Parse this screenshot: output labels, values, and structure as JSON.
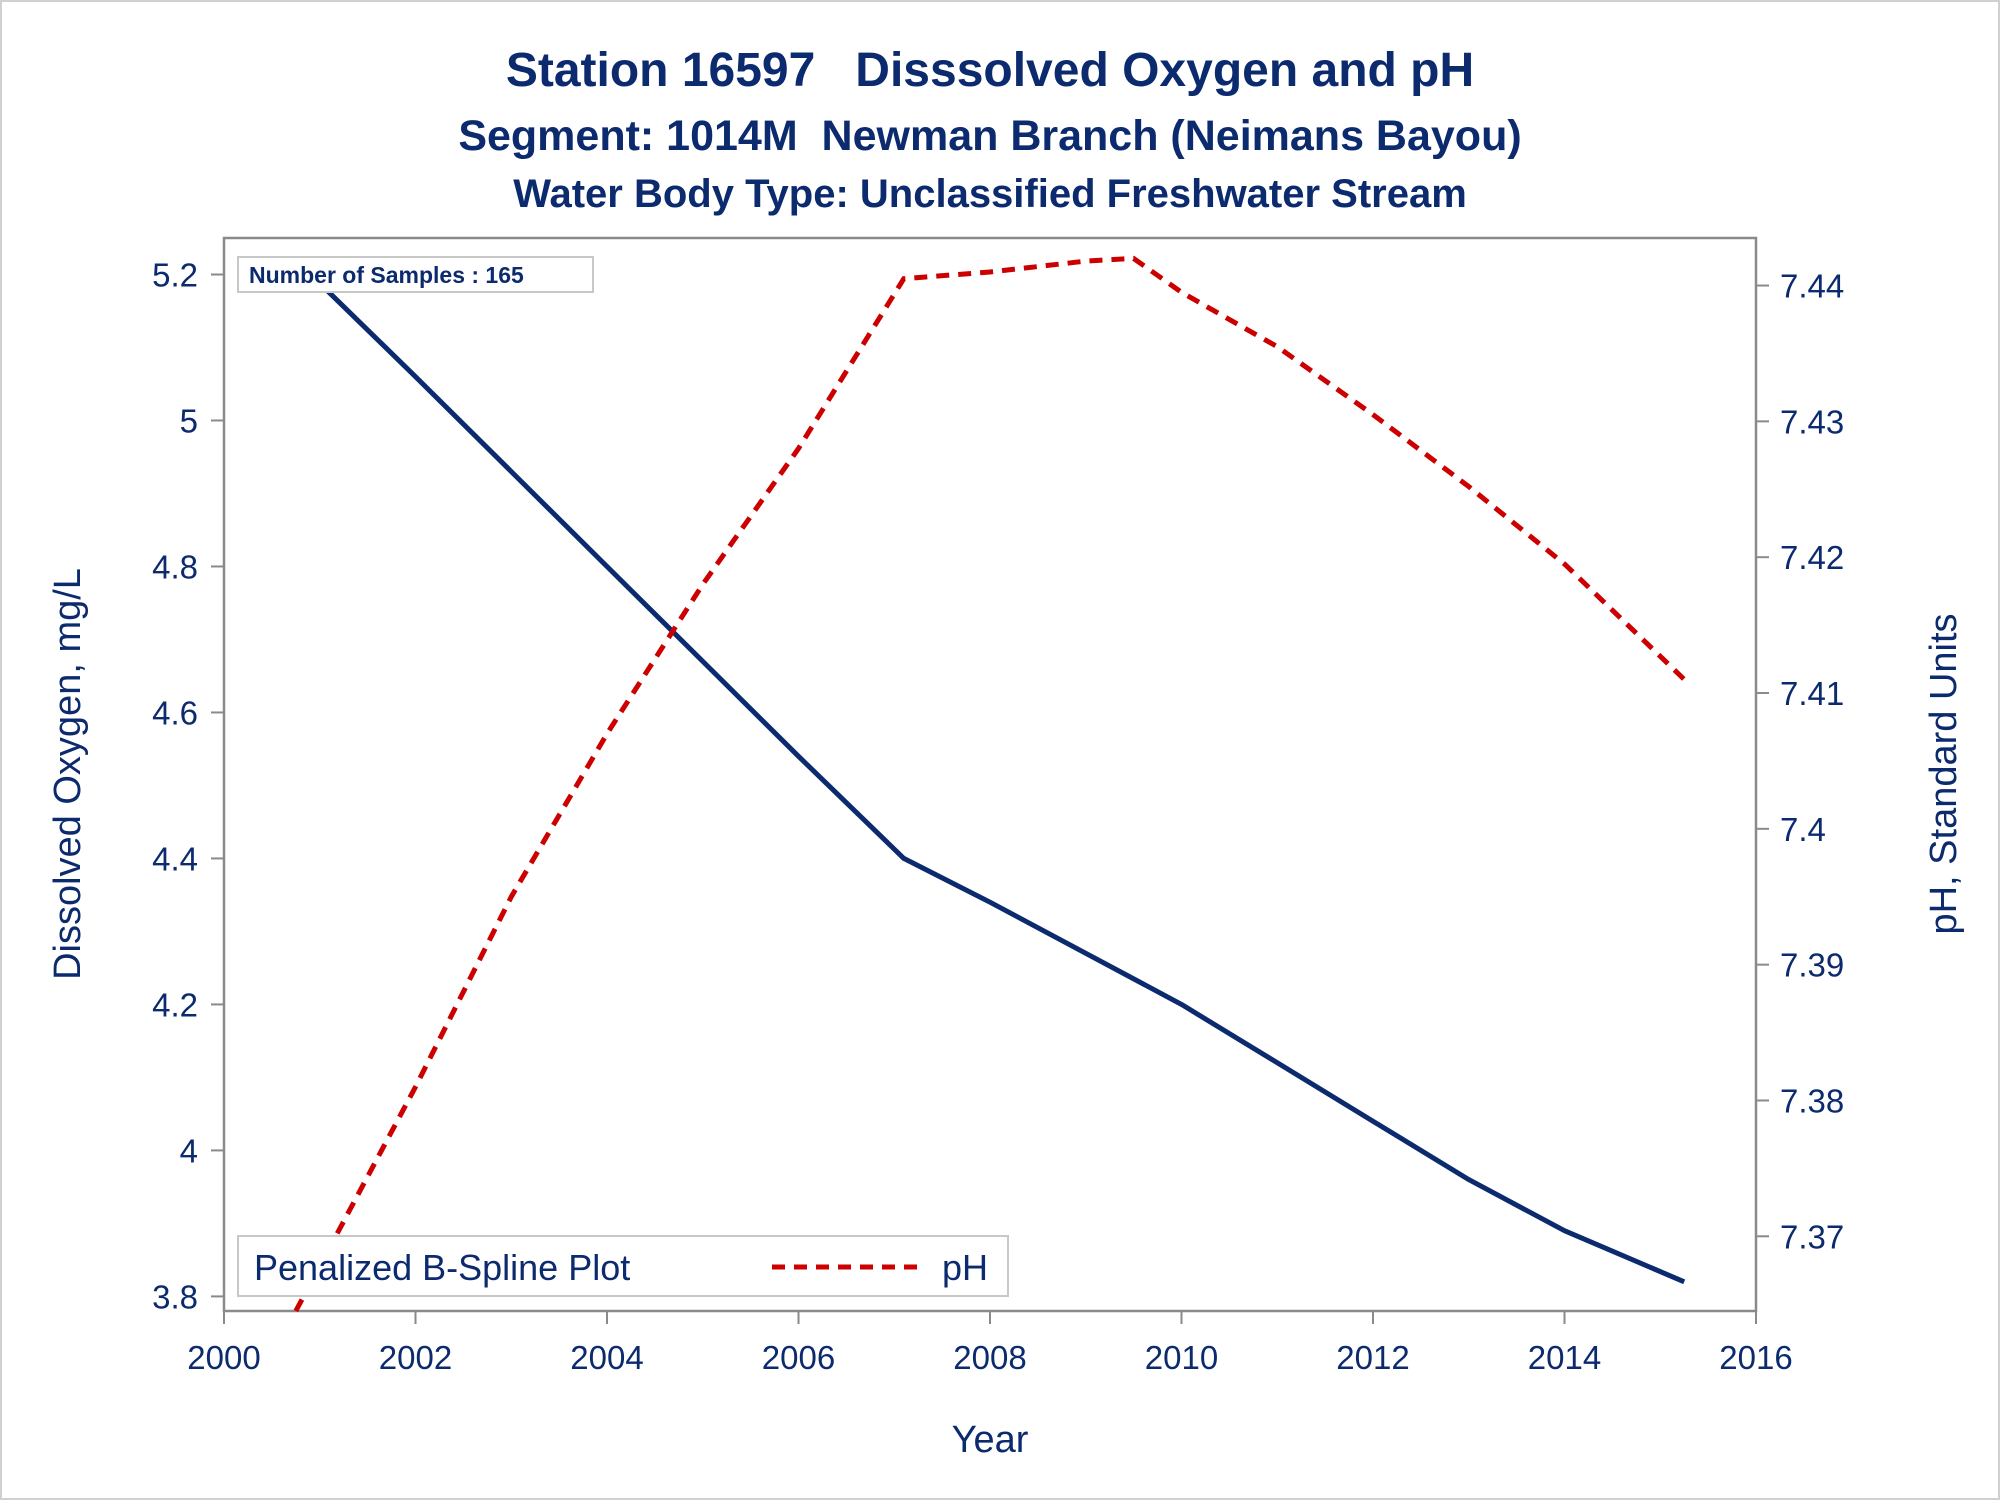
{
  "chart_data": {
    "type": "line",
    "title": "Station 16597   Disssolved Oxygen and pH",
    "subtitle": "Segment: 1014M  Newman Branch (Neimans Bayou)",
    "subtitle2": "Water Body Type: Unclassified Freshwater Stream",
    "xlabel": "Year",
    "ylabel": "Dissolved Oxygen, mg/L",
    "y2label": "pH, Standard Units",
    "xlim": [
      2000,
      2016
    ],
    "ylim": [
      3.78,
      5.25
    ],
    "y2lim": [
      7.3645,
      7.4435
    ],
    "xticks": [
      "2000",
      "2002",
      "2004",
      "2006",
      "2008",
      "2010",
      "2012",
      "2014",
      "2016"
    ],
    "yticks": [
      "3.8",
      "4",
      "4.2",
      "4.4",
      "4.6",
      "4.8",
      "5",
      "5.2"
    ],
    "y2ticks": [
      "7.37",
      "7.38",
      "7.39",
      "7.4",
      "7.41",
      "7.42",
      "7.43",
      "7.44"
    ],
    "annotation": "Number of Samples : 165",
    "legend": {
      "title": "Penalized B-Spline Plot",
      "position": "bottom-left",
      "entries": [
        "pH"
      ]
    },
    "series": [
      {
        "axis": "left",
        "color": "#0c2a6e",
        "style": "solid",
        "x": [
          2000.75,
          2002,
          2003,
          2004,
          2005,
          2006,
          2007.1,
          2008,
          2009,
          2010,
          2011,
          2012,
          2013,
          2014,
          2015.25
        ],
        "y": [
          5.22,
          5.06,
          4.93,
          4.8,
          4.67,
          4.54,
          4.4,
          4.34,
          4.27,
          4.2,
          4.12,
          4.04,
          3.96,
          3.89,
          3.82
        ]
      },
      {
        "name": "pH",
        "axis": "right",
        "color": "#cc0000",
        "style": "dashed",
        "x": [
          2000.75,
          2002,
          2003,
          2004,
          2005,
          2006,
          2007.1,
          2008,
          2009,
          2009.5,
          2010,
          2011,
          2012,
          2013,
          2014,
          2015.25
        ],
        "y": [
          7.3645,
          7.381,
          7.395,
          7.407,
          7.418,
          7.428,
          7.4405,
          7.441,
          7.4418,
          7.442,
          7.4395,
          7.4355,
          7.4305,
          7.4252,
          7.4195,
          7.411
        ]
      }
    ]
  }
}
